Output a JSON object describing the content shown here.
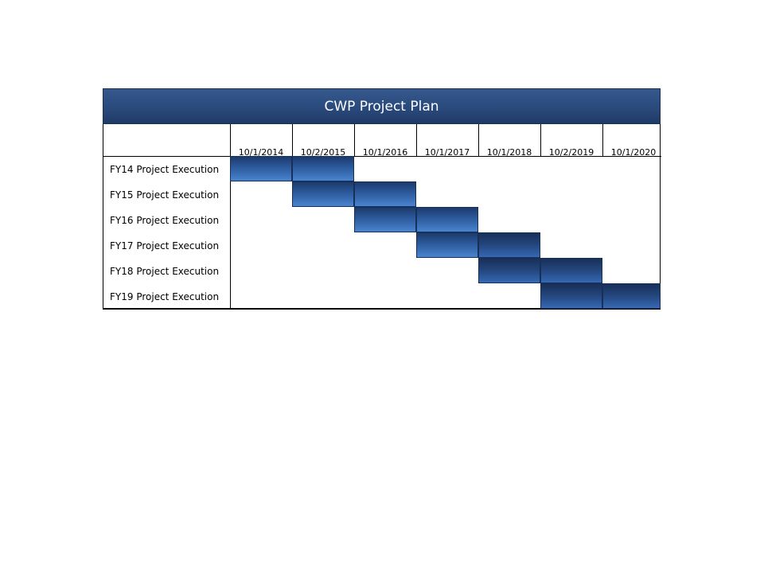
{
  "title": "CWP Project Plan",
  "columns": [
    "10/1/2014",
    "10/2/2015",
    "10/1/2016",
    "10/1/2017",
    "10/1/2018",
    "10/2/2019",
    "10/1/2020"
  ],
  "rows": [
    {
      "label": "FY14 Project Execution",
      "start": "10/1/2014",
      "end": "10/1/2016"
    },
    {
      "label": "FY15 Project Execution",
      "start": "10/2/2015",
      "end": "10/1/2017"
    },
    {
      "label": "FY16 Project Execution",
      "start": "10/1/2016",
      "end": "10/1/2018"
    },
    {
      "label": "FY17 Project Execution",
      "start": "10/1/2017",
      "end": "10/2/2019"
    },
    {
      "label": "FY18 Project Execution",
      "start": "10/1/2018",
      "end": "10/1/2020"
    },
    {
      "label": "FY19 Project Execution",
      "start": "10/2/2019",
      "end": ""
    }
  ],
  "colors": {
    "header": "#2a4a7c",
    "bar": "#2e5ea2",
    "header_text": "#ffffff"
  }
}
